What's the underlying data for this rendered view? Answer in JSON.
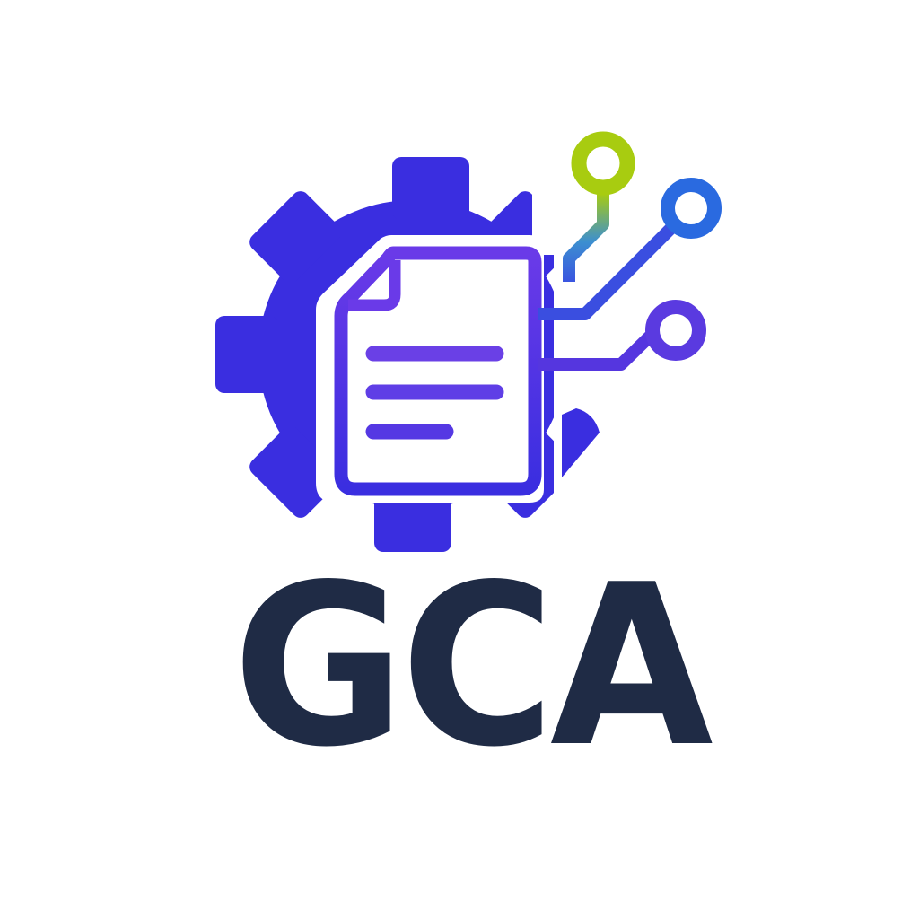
{
  "logo": {
    "wordmark": "GCA",
    "icons": {
      "gear": "gear-icon",
      "document": "document-icon",
      "circuit": "circuit-traces-icon"
    },
    "colors": {
      "gear": "#3a2ee0",
      "document_outline_top": "#6a3ae8",
      "document_outline_bottom": "#3a2ee0",
      "document_lines": "#6a40e6",
      "circuit_blue": "#3a55e0",
      "circuit_purple": "#5536df",
      "node_green": "#a8cc10",
      "node_blue": "#2a6ae0",
      "node_purple": "#5a3ae0",
      "wordmark": "#1f2b45",
      "background": "#ffffff"
    }
  }
}
